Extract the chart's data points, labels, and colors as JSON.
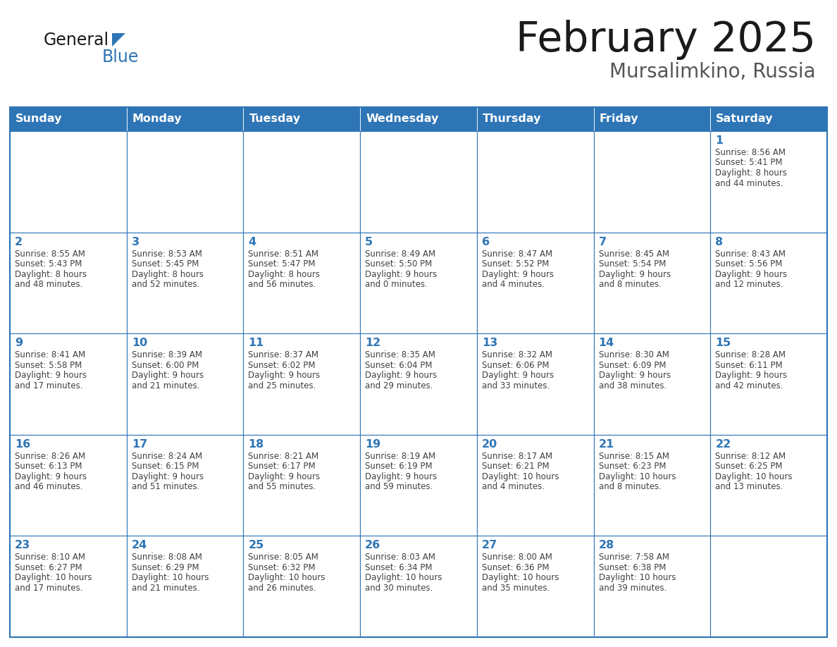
{
  "title": "February 2025",
  "subtitle": "Mursalimkino, Russia",
  "days_of_week": [
    "Sunday",
    "Monday",
    "Tuesday",
    "Wednesday",
    "Thursday",
    "Friday",
    "Saturday"
  ],
  "header_bg": "#2E75B6",
  "header_text": "#FFFFFF",
  "cell_bg": "#FFFFFF",
  "border_color": "#2E75B6",
  "day_num_color": "#2E75B6",
  "text_color": "#404040",
  "title_color": "#1A1A1A",
  "subtitle_color": "#555555",
  "weeks": [
    [
      {
        "day": null,
        "sunrise": null,
        "sunset": null,
        "daylight": null
      },
      {
        "day": null,
        "sunrise": null,
        "sunset": null,
        "daylight": null
      },
      {
        "day": null,
        "sunrise": null,
        "sunset": null,
        "daylight": null
      },
      {
        "day": null,
        "sunrise": null,
        "sunset": null,
        "daylight": null
      },
      {
        "day": null,
        "sunrise": null,
        "sunset": null,
        "daylight": null
      },
      {
        "day": null,
        "sunrise": null,
        "sunset": null,
        "daylight": null
      },
      {
        "day": 1,
        "sunrise": "8:56 AM",
        "sunset": "5:41 PM",
        "daylight": "8 hours and 44 minutes."
      }
    ],
    [
      {
        "day": 2,
        "sunrise": "8:55 AM",
        "sunset": "5:43 PM",
        "daylight": "8 hours and 48 minutes."
      },
      {
        "day": 3,
        "sunrise": "8:53 AM",
        "sunset": "5:45 PM",
        "daylight": "8 hours and 52 minutes."
      },
      {
        "day": 4,
        "sunrise": "8:51 AM",
        "sunset": "5:47 PM",
        "daylight": "8 hours and 56 minutes."
      },
      {
        "day": 5,
        "sunrise": "8:49 AM",
        "sunset": "5:50 PM",
        "daylight": "9 hours and 0 minutes."
      },
      {
        "day": 6,
        "sunrise": "8:47 AM",
        "sunset": "5:52 PM",
        "daylight": "9 hours and 4 minutes."
      },
      {
        "day": 7,
        "sunrise": "8:45 AM",
        "sunset": "5:54 PM",
        "daylight": "9 hours and 8 minutes."
      },
      {
        "day": 8,
        "sunrise": "8:43 AM",
        "sunset": "5:56 PM",
        "daylight": "9 hours and 12 minutes."
      }
    ],
    [
      {
        "day": 9,
        "sunrise": "8:41 AM",
        "sunset": "5:58 PM",
        "daylight": "9 hours and 17 minutes."
      },
      {
        "day": 10,
        "sunrise": "8:39 AM",
        "sunset": "6:00 PM",
        "daylight": "9 hours and 21 minutes."
      },
      {
        "day": 11,
        "sunrise": "8:37 AM",
        "sunset": "6:02 PM",
        "daylight": "9 hours and 25 minutes."
      },
      {
        "day": 12,
        "sunrise": "8:35 AM",
        "sunset": "6:04 PM",
        "daylight": "9 hours and 29 minutes."
      },
      {
        "day": 13,
        "sunrise": "8:32 AM",
        "sunset": "6:06 PM",
        "daylight": "9 hours and 33 minutes."
      },
      {
        "day": 14,
        "sunrise": "8:30 AM",
        "sunset": "6:09 PM",
        "daylight": "9 hours and 38 minutes."
      },
      {
        "day": 15,
        "sunrise": "8:28 AM",
        "sunset": "6:11 PM",
        "daylight": "9 hours and 42 minutes."
      }
    ],
    [
      {
        "day": 16,
        "sunrise": "8:26 AM",
        "sunset": "6:13 PM",
        "daylight": "9 hours and 46 minutes."
      },
      {
        "day": 17,
        "sunrise": "8:24 AM",
        "sunset": "6:15 PM",
        "daylight": "9 hours and 51 minutes."
      },
      {
        "day": 18,
        "sunrise": "8:21 AM",
        "sunset": "6:17 PM",
        "daylight": "9 hours and 55 minutes."
      },
      {
        "day": 19,
        "sunrise": "8:19 AM",
        "sunset": "6:19 PM",
        "daylight": "9 hours and 59 minutes."
      },
      {
        "day": 20,
        "sunrise": "8:17 AM",
        "sunset": "6:21 PM",
        "daylight": "10 hours and 4 minutes."
      },
      {
        "day": 21,
        "sunrise": "8:15 AM",
        "sunset": "6:23 PM",
        "daylight": "10 hours and 8 minutes."
      },
      {
        "day": 22,
        "sunrise": "8:12 AM",
        "sunset": "6:25 PM",
        "daylight": "10 hours and 13 minutes."
      }
    ],
    [
      {
        "day": 23,
        "sunrise": "8:10 AM",
        "sunset": "6:27 PM",
        "daylight": "10 hours and 17 minutes."
      },
      {
        "day": 24,
        "sunrise": "8:08 AM",
        "sunset": "6:29 PM",
        "daylight": "10 hours and 21 minutes."
      },
      {
        "day": 25,
        "sunrise": "8:05 AM",
        "sunset": "6:32 PM",
        "daylight": "10 hours and 26 minutes."
      },
      {
        "day": 26,
        "sunrise": "8:03 AM",
        "sunset": "6:34 PM",
        "daylight": "10 hours and 30 minutes."
      },
      {
        "day": 27,
        "sunrise": "8:00 AM",
        "sunset": "6:36 PM",
        "daylight": "10 hours and 35 minutes."
      },
      {
        "day": 28,
        "sunrise": "7:58 AM",
        "sunset": "6:38 PM",
        "daylight": "10 hours and 39 minutes."
      },
      {
        "day": null,
        "sunrise": null,
        "sunset": null,
        "daylight": null
      }
    ]
  ]
}
